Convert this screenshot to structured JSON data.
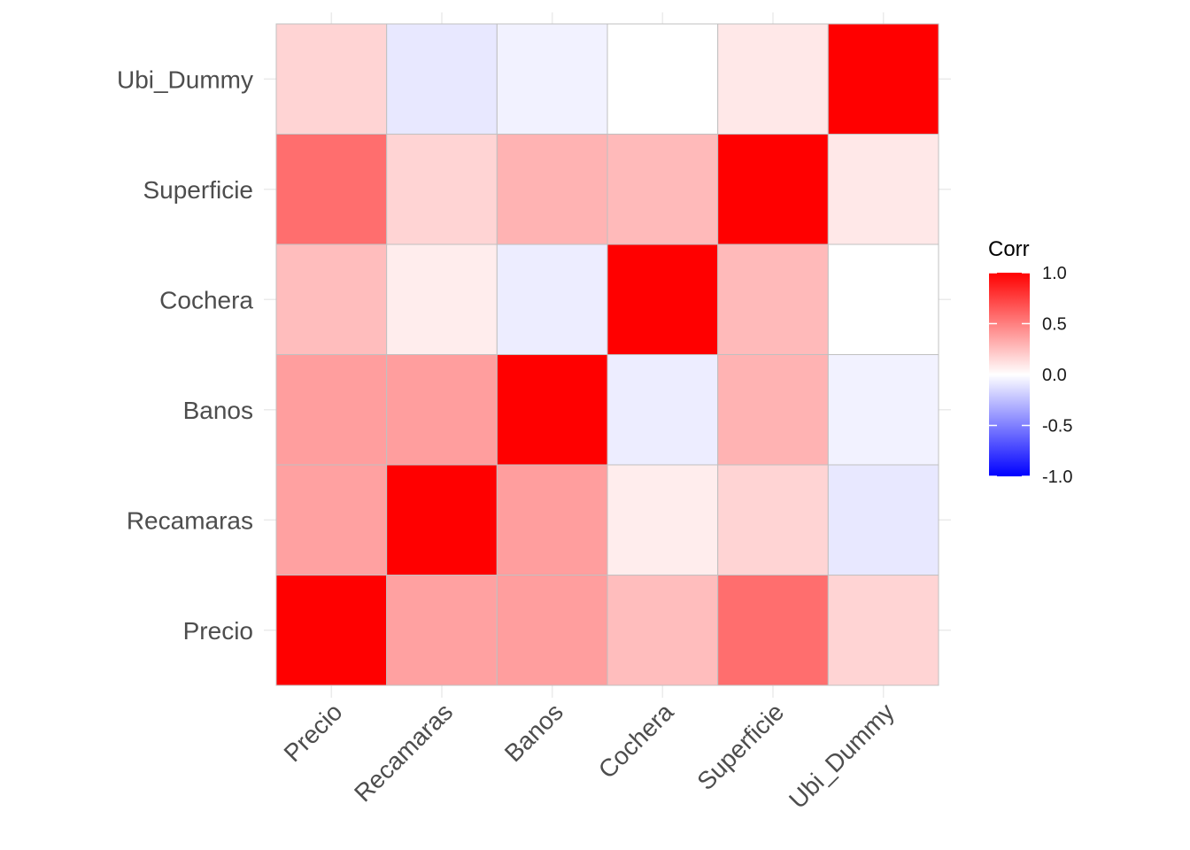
{
  "chart_data": {
    "type": "heatmap",
    "title": "",
    "xlabel": "",
    "ylabel": "",
    "x_categories": [
      "Precio",
      "Recamaras",
      "Banos",
      "Cochera",
      "Superficie",
      "Ubi_Dummy"
    ],
    "y_categories": [
      "Precio",
      "Recamaras",
      "Banos",
      "Cochera",
      "Superficie",
      "Ubi_Dummy"
    ],
    "matrix": [
      [
        1.0,
        0.37,
        0.38,
        0.26,
        0.57,
        0.17
      ],
      [
        0.37,
        1.0,
        0.38,
        0.07,
        0.17,
        -0.09
      ],
      [
        0.38,
        0.38,
        1.0,
        -0.07,
        0.3,
        -0.05
      ],
      [
        0.26,
        0.07,
        -0.07,
        1.0,
        0.27,
        0.0
      ],
      [
        0.57,
        0.17,
        0.3,
        0.27,
        1.0,
        0.09
      ],
      [
        0.17,
        -0.09,
        -0.05,
        0.0,
        0.09,
        1.0
      ]
    ],
    "legend": {
      "title": "Corr",
      "ticks": [
        1.0,
        0.5,
        0.0,
        -0.5,
        -1.0
      ],
      "tick_labels": [
        "1.0",
        "0.5",
        "0.0",
        "-0.5",
        "-1.0"
      ],
      "placement": "right"
    },
    "colors": {
      "high": "#ff0000",
      "mid": "#ffffff",
      "low": "#0000ff",
      "cell_border": "#c0c0c0",
      "grid": "#ebebeb"
    },
    "grid": true,
    "range": [
      -1,
      1
    ]
  }
}
